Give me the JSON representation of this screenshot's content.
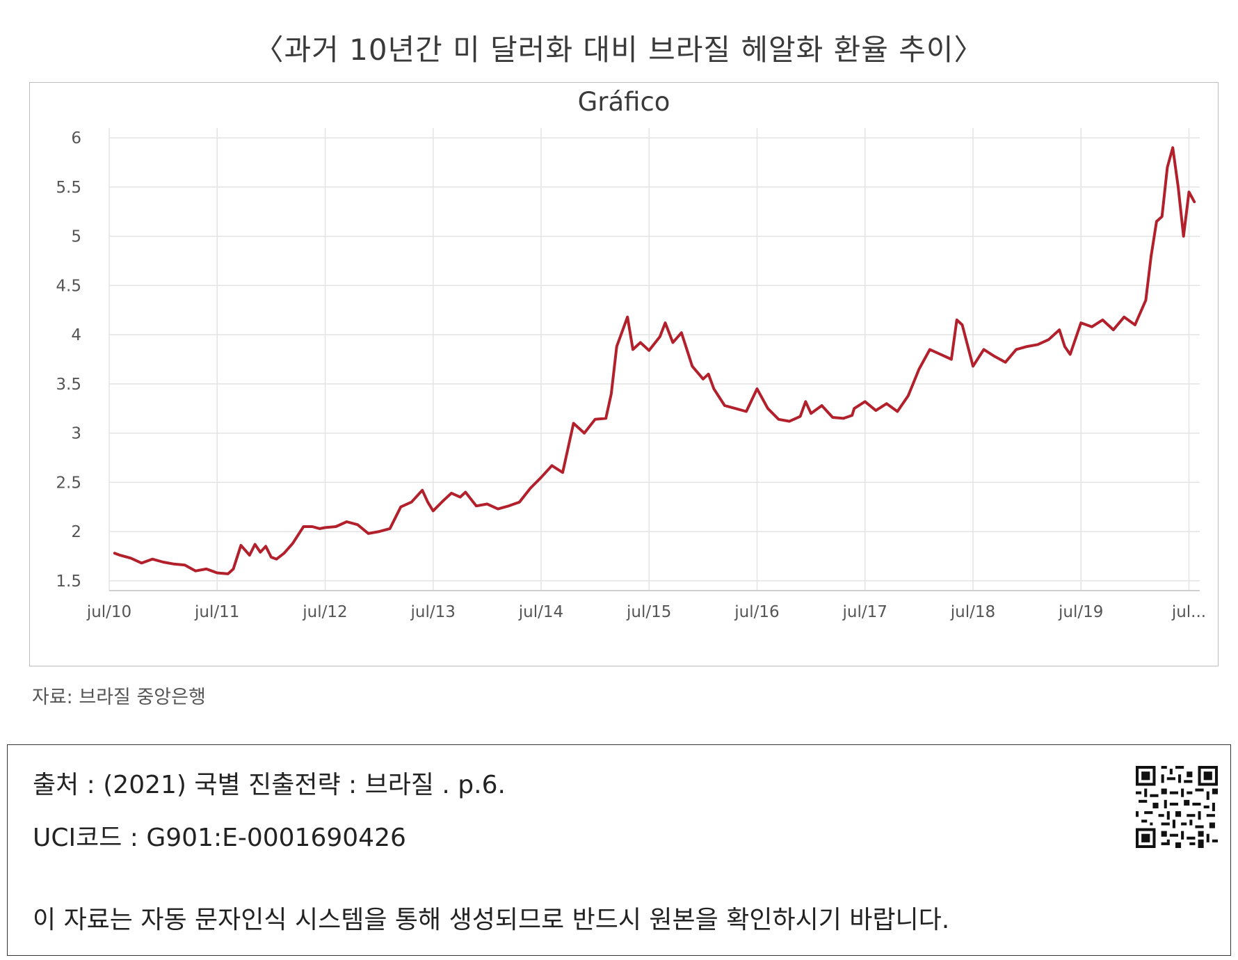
{
  "page_title": "〈과거 10년간 미 달러화 대비 브라질 헤알화 환율 추이〉",
  "source_note": "자료: 브라질 중앙은행",
  "citation": {
    "source_line": "출처 : (2021) 국별 진출전략 : 브라질 . p.6.",
    "uci_line": "UCI코드 : G901:E-0001690426",
    "notice_line": "이 자료는 자동 문자인식 시스템을 통해 생성되므로 반드시 원본을 확인하시기 바랍니다."
  },
  "colors": {
    "series": "#b2202c",
    "grid": "#e3e3e3",
    "text": "#555555"
  },
  "chart_data": {
    "type": "line",
    "title": "Gráfico",
    "xlabel": "",
    "ylabel": "",
    "x_tick_labels": [
      "jul/10",
      "jul/11",
      "jul/12",
      "jul/13",
      "jul/14",
      "jul/15",
      "jul/16",
      "jul/17",
      "jul/18",
      "jul/19",
      "jul..."
    ],
    "y_tick_labels": [
      "1.5",
      "2",
      "2.5",
      "3",
      "3.5",
      "4",
      "4.5",
      "5",
      "5.5",
      "6"
    ],
    "ylim": [
      1.4,
      6.1
    ],
    "xlim": [
      2010.5,
      2020.6
    ],
    "grid": true,
    "legend": "none",
    "series": [
      {
        "x": [
          2010.55,
          2010.6,
          2010.7,
          2010.8,
          2010.9,
          2011.0,
          2011.1,
          2011.2,
          2011.3,
          2011.4,
          2011.5,
          2011.6,
          2011.65,
          2011.72,
          2011.8,
          2011.85,
          2011.9,
          2011.95,
          2012.0,
          2012.05,
          2012.12,
          2012.2,
          2012.3,
          2012.38,
          2012.45,
          2012.5,
          2012.6,
          2012.7,
          2012.8,
          2012.9,
          2013.0,
          2013.1,
          2013.2,
          2013.3,
          2013.4,
          2013.45,
          2013.5,
          2013.6,
          2013.67,
          2013.75,
          2013.8,
          2013.9,
          2014.0,
          2014.1,
          2014.2,
          2014.3,
          2014.4,
          2014.5,
          2014.6,
          2014.7,
          2014.8,
          2014.9,
          2015.0,
          2015.1,
          2015.15,
          2015.2,
          2015.3,
          2015.35,
          2015.42,
          2015.5,
          2015.6,
          2015.65,
          2015.72,
          2015.8,
          2015.9,
          2016.0,
          2016.05,
          2016.1,
          2016.2,
          2016.3,
          2016.4,
          2016.5,
          2016.6,
          2016.7,
          2016.8,
          2016.9,
          2016.95,
          2017.0,
          2017.1,
          2017.2,
          2017.3,
          2017.38,
          2017.4,
          2017.5,
          2017.6,
          2017.7,
          2017.8,
          2017.9,
          2018.0,
          2018.1,
          2018.2,
          2018.3,
          2018.35,
          2018.4,
          2018.5,
          2018.6,
          2018.7,
          2018.8,
          2018.9,
          2019.0,
          2019.1,
          2019.2,
          2019.3,
          2019.35,
          2019.4,
          2019.5,
          2019.6,
          2019.7,
          2019.8,
          2019.9,
          2020.0,
          2020.1,
          2020.15,
          2020.2,
          2020.25,
          2020.3,
          2020.35,
          2020.4,
          2020.45,
          2020.5,
          2020.55
        ],
        "y": [
          1.78,
          1.76,
          1.73,
          1.68,
          1.72,
          1.69,
          1.67,
          1.66,
          1.6,
          1.62,
          1.58,
          1.57,
          1.62,
          1.86,
          1.76,
          1.87,
          1.79,
          1.85,
          1.74,
          1.72,
          1.78,
          1.88,
          2.05,
          2.05,
          2.03,
          2.04,
          2.05,
          2.1,
          2.07,
          1.98,
          2.0,
          2.03,
          2.25,
          2.3,
          2.42,
          2.3,
          2.21,
          2.32,
          2.39,
          2.35,
          2.4,
          2.26,
          2.28,
          2.23,
          2.26,
          2.3,
          2.44,
          2.55,
          2.67,
          2.6,
          3.1,
          3.0,
          3.14,
          3.15,
          3.4,
          3.88,
          4.18,
          3.85,
          3.92,
          3.84,
          3.98,
          4.12,
          3.92,
          4.02,
          3.68,
          3.55,
          3.6,
          3.45,
          3.28,
          3.25,
          3.22,
          3.45,
          3.25,
          3.14,
          3.12,
          3.17,
          3.32,
          3.2,
          3.28,
          3.16,
          3.15,
          3.18,
          3.25,
          3.32,
          3.23,
          3.3,
          3.22,
          3.38,
          3.65,
          3.85,
          3.8,
          3.75,
          4.15,
          4.1,
          3.68,
          3.85,
          3.78,
          3.72,
          3.85,
          3.88,
          3.9,
          3.95,
          4.05,
          3.88,
          3.8,
          4.12,
          4.08,
          4.15,
          4.05,
          4.18,
          4.1,
          4.35,
          4.8,
          5.15,
          5.2,
          5.7,
          5.9,
          5.5,
          5.0,
          5.45,
          5.35
        ]
      }
    ]
  }
}
